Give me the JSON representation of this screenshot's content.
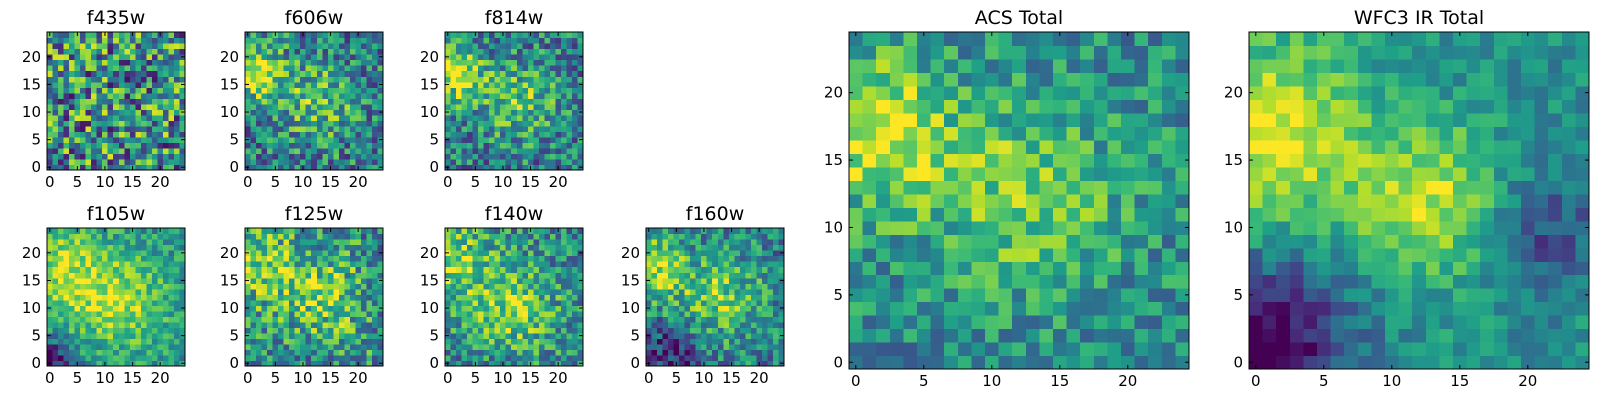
{
  "chart_data": [
    {
      "type": "heatmap",
      "title": "f435w",
      "colormap": "viridis",
      "shape": [
        25,
        25
      ],
      "xlim": [
        -0.5,
        24.5
      ],
      "ylim": [
        -0.5,
        24.5
      ],
      "xticks": [
        0,
        5,
        10,
        15,
        20
      ],
      "yticks": [
        0,
        5,
        10,
        15,
        20
      ],
      "pattern": {
        "seed": 11,
        "noise": 0.45,
        "bias": 0.5,
        "blobs": []
      }
    },
    {
      "type": "heatmap",
      "title": "f606w",
      "colormap": "viridis",
      "shape": [
        25,
        25
      ],
      "xlim": [
        -0.5,
        24.5
      ],
      "ylim": [
        -0.5,
        24.5
      ],
      "xticks": [
        0,
        5,
        10,
        15,
        20
      ],
      "yticks": [
        0,
        5,
        10,
        15,
        20
      ],
      "pattern": {
        "seed": 23,
        "noise": 0.32,
        "bias": 0.42,
        "blobs": [
          [
            1.5,
            17,
            3.5,
            0.5
          ],
          [
            12.5,
            12,
            5,
            0.3
          ]
        ]
      }
    },
    {
      "type": "heatmap",
      "title": "f814w",
      "colormap": "viridis",
      "shape": [
        25,
        25
      ],
      "xlim": [
        -0.5,
        24.5
      ],
      "ylim": [
        -0.5,
        24.5
      ],
      "xticks": [
        0,
        5,
        10,
        15,
        20
      ],
      "yticks": [
        0,
        5,
        10,
        15,
        20
      ],
      "pattern": {
        "seed": 37,
        "noise": 0.3,
        "bias": 0.42,
        "blobs": [
          [
            1.5,
            17,
            3.5,
            0.5
          ],
          [
            13,
            12,
            5,
            0.3
          ]
        ]
      }
    },
    {
      "type": "heatmap",
      "title": "f105w",
      "colormap": "viridis",
      "shape": [
        25,
        25
      ],
      "xlim": [
        -0.5,
        24.5
      ],
      "ylim": [
        -0.5,
        24.5
      ],
      "xticks": [
        0,
        5,
        10,
        15,
        20
      ],
      "yticks": [
        0,
        5,
        10,
        15,
        20
      ],
      "pattern": {
        "seed": 41,
        "noise": 0.2,
        "bias": 0.5,
        "blobs": [
          [
            2,
            17,
            6,
            0.35
          ],
          [
            13,
            11,
            6,
            0.35
          ],
          [
            0,
            0,
            3,
            -0.5
          ]
        ]
      }
    },
    {
      "type": "heatmap",
      "title": "f125w",
      "colormap": "viridis",
      "shape": [
        25,
        25
      ],
      "xlim": [
        -0.5,
        24.5
      ],
      "ylim": [
        -0.5,
        24.5
      ],
      "xticks": [
        0,
        5,
        10,
        15,
        20
      ],
      "yticks": [
        0,
        5,
        10,
        15,
        20
      ],
      "pattern": {
        "seed": 53,
        "noise": 0.32,
        "bias": 0.5,
        "blobs": [
          [
            2,
            18,
            5,
            0.3
          ],
          [
            14,
            12,
            5,
            0.3
          ]
        ]
      }
    },
    {
      "type": "heatmap",
      "title": "f140w",
      "colormap": "viridis",
      "shape": [
        25,
        25
      ],
      "xlim": [
        -0.5,
        24.5
      ],
      "ylim": [
        -0.5,
        24.5
      ],
      "xticks": [
        0,
        5,
        10,
        15,
        20
      ],
      "yticks": [
        0,
        5,
        10,
        15,
        20
      ],
      "pattern": {
        "seed": 67,
        "noise": 0.28,
        "bias": 0.48,
        "blobs": [
          [
            1,
            18,
            5,
            0.35
          ],
          [
            12,
            10,
            5,
            0.35
          ]
        ]
      }
    },
    {
      "type": "heatmap",
      "title": "f160w",
      "colormap": "viridis",
      "shape": [
        25,
        25
      ],
      "xlim": [
        -0.5,
        24.5
      ],
      "ylim": [
        -0.5,
        24.5
      ],
      "xticks": [
        0,
        5,
        10,
        15,
        20
      ],
      "yticks": [
        0,
        5,
        10,
        15,
        20
      ],
      "pattern": {
        "seed": 79,
        "noise": 0.27,
        "bias": 0.44,
        "blobs": [
          [
            1,
            17,
            4,
            0.45
          ],
          [
            13,
            12,
            5,
            0.35
          ],
          [
            4,
            1,
            4,
            -0.3
          ]
        ]
      }
    },
    {
      "type": "heatmap",
      "title": "ACS Total",
      "colormap": "viridis",
      "shape": [
        25,
        25
      ],
      "xlim": [
        -0.5,
        24.5
      ],
      "ylim": [
        -0.5,
        24.5
      ],
      "xticks": [
        0,
        5,
        10,
        15,
        20
      ],
      "yticks": [
        0,
        5,
        10,
        15,
        20
      ],
      "pattern": {
        "seed": 97,
        "noise": 0.22,
        "bias": 0.48,
        "blobs": [
          [
            1.5,
            17,
            4,
            0.45
          ],
          [
            12.5,
            12.5,
            5,
            0.3
          ]
        ]
      }
    },
    {
      "type": "heatmap",
      "title": "WFC3 IR Total",
      "colormap": "viridis",
      "shape": [
        25,
        25
      ],
      "xlim": [
        -0.5,
        24.5
      ],
      "ylim": [
        -0.5,
        24.5
      ],
      "xticks": [
        0,
        5,
        10,
        15,
        20
      ],
      "yticks": [
        0,
        5,
        10,
        15,
        20
      ],
      "pattern": {
        "seed": 131,
        "noise": 0.14,
        "bias": 0.5,
        "blobs": [
          [
            1,
            17,
            5,
            0.45
          ],
          [
            13,
            12,
            4,
            0.4
          ],
          [
            1,
            2,
            4,
            -0.55
          ],
          [
            21,
            10,
            3,
            -0.3
          ]
        ]
      }
    }
  ]
}
